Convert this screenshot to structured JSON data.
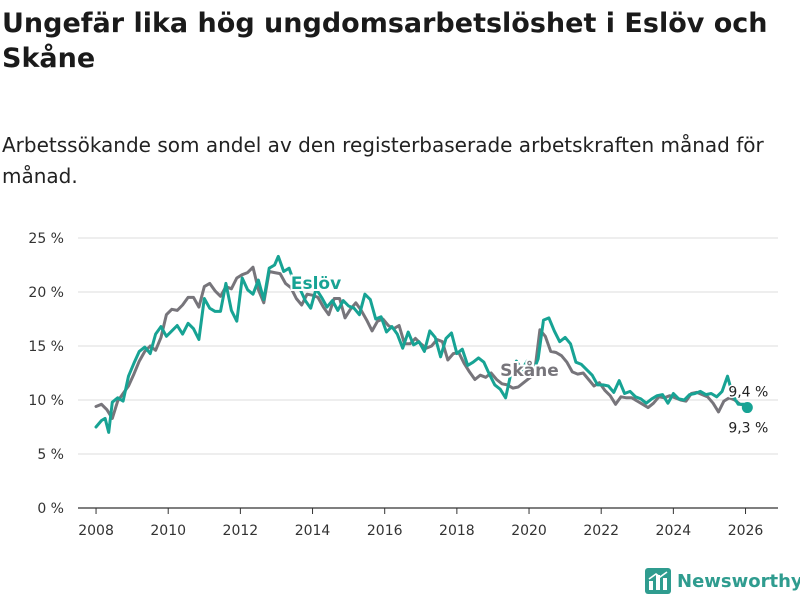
{
  "title": "Ungefär lika hög ungdomsarbetslöshet i Eslöv och Skåne",
  "subtitle": "Arbetssökande som andel av den registerbaserade arbetskraften månad för månad.",
  "brand": {
    "name": "Newsworthy",
    "icon": "bar-chart-logo-icon",
    "color": "#2f9c8f"
  },
  "chart_data": {
    "type": "line",
    "xlim": [
      2007.5,
      2026.9
    ],
    "ylim": [
      0,
      25
    ],
    "x_ticks": [
      {
        "value": 2008,
        "label": "2008"
      },
      {
        "value": 2010,
        "label": "2010"
      },
      {
        "value": 2012,
        "label": "2012"
      },
      {
        "value": 2014,
        "label": "2014"
      },
      {
        "value": 2016,
        "label": "2016"
      },
      {
        "value": 2018,
        "label": "2018"
      },
      {
        "value": 2020,
        "label": "2020"
      },
      {
        "value": 2022,
        "label": "2022"
      },
      {
        "value": 2024,
        "label": "2024"
      },
      {
        "value": 2026,
        "label": "2026"
      }
    ],
    "y_ticks": [
      {
        "value": 0,
        "label": "0 %"
      },
      {
        "value": 5,
        "label": "5 %"
      },
      {
        "value": 10,
        "label": "10 %"
      },
      {
        "value": 15,
        "label": "15 %"
      },
      {
        "value": 20,
        "label": "20 %"
      },
      {
        "value": 25,
        "label": "25 %"
      }
    ],
    "series": [
      {
        "name": "Skåne",
        "label": "Skåne",
        "label_at": [
          2019.2,
          12.2
        ],
        "color": "#77757b",
        "end_label": "9,4 %",
        "points": [
          [
            2008.0,
            9.4
          ],
          [
            2008.15,
            9.6
          ],
          [
            2008.3,
            9.1
          ],
          [
            2008.45,
            8.3
          ],
          [
            2008.6,
            9.9
          ],
          [
            2008.75,
            10.6
          ],
          [
            2008.9,
            11.3
          ],
          [
            2009.05,
            12.4
          ],
          [
            2009.2,
            13.6
          ],
          [
            2009.35,
            14.5
          ],
          [
            2009.5,
            15.0
          ],
          [
            2009.65,
            14.6
          ],
          [
            2009.8,
            15.8
          ],
          [
            2009.95,
            17.9
          ],
          [
            2010.1,
            18.4
          ],
          [
            2010.25,
            18.3
          ],
          [
            2010.4,
            18.8
          ],
          [
            2010.55,
            19.5
          ],
          [
            2010.7,
            19.5
          ],
          [
            2010.85,
            18.6
          ],
          [
            2011.0,
            20.5
          ],
          [
            2011.15,
            20.8
          ],
          [
            2011.3,
            20.1
          ],
          [
            2011.45,
            19.6
          ],
          [
            2011.6,
            20.5
          ],
          [
            2011.75,
            20.3
          ],
          [
            2011.9,
            21.3
          ],
          [
            2012.05,
            21.6
          ],
          [
            2012.2,
            21.8
          ],
          [
            2012.35,
            22.3
          ],
          [
            2012.5,
            20.2
          ],
          [
            2012.65,
            19.0
          ],
          [
            2012.8,
            21.9
          ],
          [
            2012.95,
            21.8
          ],
          [
            2013.1,
            21.7
          ],
          [
            2013.25,
            20.8
          ],
          [
            2013.4,
            20.4
          ],
          [
            2013.55,
            19.4
          ],
          [
            2013.7,
            18.8
          ],
          [
            2013.85,
            19.8
          ],
          [
            2014.0,
            19.7
          ],
          [
            2014.15,
            19.5
          ],
          [
            2014.3,
            18.6
          ],
          [
            2014.45,
            17.9
          ],
          [
            2014.6,
            19.4
          ],
          [
            2014.75,
            19.4
          ],
          [
            2014.9,
            17.6
          ],
          [
            2015.05,
            18.4
          ],
          [
            2015.2,
            19.0
          ],
          [
            2015.35,
            18.3
          ],
          [
            2015.5,
            17.4
          ],
          [
            2015.65,
            16.4
          ],
          [
            2015.8,
            17.3
          ],
          [
            2015.95,
            17.5
          ],
          [
            2016.1,
            16.9
          ],
          [
            2016.25,
            16.6
          ],
          [
            2016.4,
            16.9
          ],
          [
            2016.55,
            15.2
          ],
          [
            2016.7,
            15.2
          ],
          [
            2016.85,
            15.7
          ],
          [
            2017.0,
            15.2
          ],
          [
            2017.15,
            14.8
          ],
          [
            2017.3,
            15.0
          ],
          [
            2017.45,
            15.6
          ],
          [
            2017.6,
            15.4
          ],
          [
            2017.75,
            13.7
          ],
          [
            2017.9,
            14.3
          ],
          [
            2018.05,
            14.4
          ],
          [
            2018.2,
            13.4
          ],
          [
            2018.35,
            12.6
          ],
          [
            2018.5,
            11.9
          ],
          [
            2018.65,
            12.3
          ],
          [
            2018.8,
            12.1
          ],
          [
            2018.95,
            12.5
          ],
          [
            2019.1,
            11.9
          ],
          [
            2019.25,
            11.5
          ],
          [
            2019.4,
            11.4
          ],
          [
            2019.55,
            11.1
          ],
          [
            2019.7,
            11.2
          ],
          [
            2019.85,
            11.6
          ],
          [
            2020.0,
            12.0
          ],
          [
            2020.15,
            12.4
          ],
          [
            2020.3,
            16.5
          ],
          [
            2020.45,
            15.9
          ],
          [
            2020.6,
            14.5
          ],
          [
            2020.75,
            14.4
          ],
          [
            2020.9,
            14.1
          ],
          [
            2021.05,
            13.5
          ],
          [
            2021.2,
            12.6
          ],
          [
            2021.35,
            12.4
          ],
          [
            2021.5,
            12.5
          ],
          [
            2021.65,
            11.9
          ],
          [
            2021.8,
            11.3
          ],
          [
            2021.95,
            11.6
          ],
          [
            2022.1,
            10.9
          ],
          [
            2022.25,
            10.4
          ],
          [
            2022.4,
            9.6
          ],
          [
            2022.55,
            10.3
          ],
          [
            2022.7,
            10.2
          ],
          [
            2022.85,
            10.2
          ],
          [
            2023.0,
            9.9
          ],
          [
            2023.15,
            9.6
          ],
          [
            2023.3,
            9.3
          ],
          [
            2023.45,
            9.7
          ],
          [
            2023.6,
            10.3
          ],
          [
            2023.75,
            10.2
          ],
          [
            2023.9,
            10.4
          ],
          [
            2024.05,
            10.2
          ],
          [
            2024.2,
            10.0
          ],
          [
            2024.35,
            9.9
          ],
          [
            2024.5,
            10.6
          ],
          [
            2024.65,
            10.7
          ],
          [
            2024.8,
            10.5
          ],
          [
            2024.95,
            10.3
          ],
          [
            2025.1,
            9.7
          ],
          [
            2025.25,
            8.9
          ],
          [
            2025.4,
            9.9
          ],
          [
            2025.55,
            10.2
          ],
          [
            2025.7,
            10.0
          ],
          [
            2025.85,
            9.6
          ],
          [
            2026.0,
            9.5
          ],
          [
            2026.05,
            9.4
          ]
        ]
      },
      {
        "name": "Eslöv",
        "label": "Eslöv",
        "label_at": [
          2013.4,
          20.3
        ],
        "color": "#17a394",
        "end_label": "9,3 %",
        "points": [
          [
            2008.0,
            7.5
          ],
          [
            2008.15,
            8.1
          ],
          [
            2008.25,
            8.3
          ],
          [
            2008.35,
            7.0
          ],
          [
            2008.45,
            9.8
          ],
          [
            2008.6,
            10.2
          ],
          [
            2008.75,
            9.9
          ],
          [
            2008.9,
            12.2
          ],
          [
            2009.05,
            13.4
          ],
          [
            2009.2,
            14.5
          ],
          [
            2009.35,
            14.9
          ],
          [
            2009.5,
            14.3
          ],
          [
            2009.65,
            16.1
          ],
          [
            2009.8,
            16.8
          ],
          [
            2009.95,
            15.9
          ],
          [
            2010.1,
            16.4
          ],
          [
            2010.25,
            16.9
          ],
          [
            2010.4,
            16.1
          ],
          [
            2010.55,
            17.1
          ],
          [
            2010.7,
            16.6
          ],
          [
            2010.85,
            15.6
          ],
          [
            2011.0,
            19.4
          ],
          [
            2011.15,
            18.5
          ],
          [
            2011.3,
            18.2
          ],
          [
            2011.45,
            18.2
          ],
          [
            2011.6,
            20.8
          ],
          [
            2011.75,
            18.3
          ],
          [
            2011.9,
            17.3
          ],
          [
            2012.05,
            21.3
          ],
          [
            2012.2,
            20.2
          ],
          [
            2012.35,
            19.8
          ],
          [
            2012.5,
            21.1
          ],
          [
            2012.65,
            19.3
          ],
          [
            2012.8,
            22.2
          ],
          [
            2012.95,
            22.5
          ],
          [
            2013.05,
            23.3
          ],
          [
            2013.2,
            21.9
          ],
          [
            2013.35,
            22.2
          ],
          [
            2013.5,
            20.8
          ],
          [
            2013.65,
            20.3
          ],
          [
            2013.8,
            19.2
          ],
          [
            2013.95,
            18.5
          ],
          [
            2014.1,
            20.3
          ],
          [
            2014.25,
            19.5
          ],
          [
            2014.4,
            18.6
          ],
          [
            2014.55,
            19.2
          ],
          [
            2014.7,
            18.3
          ],
          [
            2014.85,
            19.2
          ],
          [
            2015.0,
            18.7
          ],
          [
            2015.15,
            18.5
          ],
          [
            2015.3,
            17.9
          ],
          [
            2015.45,
            19.8
          ],
          [
            2015.6,
            19.3
          ],
          [
            2015.75,
            17.5
          ],
          [
            2015.9,
            17.7
          ],
          [
            2016.05,
            16.3
          ],
          [
            2016.2,
            16.8
          ],
          [
            2016.35,
            16.1
          ],
          [
            2016.5,
            14.8
          ],
          [
            2016.65,
            16.3
          ],
          [
            2016.8,
            15.1
          ],
          [
            2016.95,
            15.4
          ],
          [
            2017.1,
            14.5
          ],
          [
            2017.25,
            16.4
          ],
          [
            2017.4,
            15.8
          ],
          [
            2017.55,
            14.0
          ],
          [
            2017.7,
            15.7
          ],
          [
            2017.85,
            16.2
          ],
          [
            2018.0,
            14.3
          ],
          [
            2018.15,
            14.7
          ],
          [
            2018.3,
            13.2
          ],
          [
            2018.45,
            13.5
          ],
          [
            2018.6,
            13.9
          ],
          [
            2018.75,
            13.5
          ],
          [
            2018.9,
            12.4
          ],
          [
            2019.05,
            11.4
          ],
          [
            2019.2,
            11.0
          ],
          [
            2019.35,
            10.2
          ],
          [
            2019.5,
            12.5
          ],
          [
            2019.65,
            13.6
          ],
          [
            2019.8,
            12.8
          ],
          [
            2019.95,
            13.6
          ],
          [
            2020.1,
            12.5
          ],
          [
            2020.25,
            13.8
          ],
          [
            2020.4,
            17.4
          ],
          [
            2020.55,
            17.6
          ],
          [
            2020.7,
            16.4
          ],
          [
            2020.85,
            15.4
          ],
          [
            2021.0,
            15.8
          ],
          [
            2021.15,
            15.2
          ],
          [
            2021.3,
            13.5
          ],
          [
            2021.45,
            13.3
          ],
          [
            2021.6,
            12.8
          ],
          [
            2021.75,
            12.3
          ],
          [
            2021.9,
            11.4
          ],
          [
            2022.05,
            11.4
          ],
          [
            2022.2,
            11.3
          ],
          [
            2022.35,
            10.7
          ],
          [
            2022.5,
            11.8
          ],
          [
            2022.65,
            10.6
          ],
          [
            2022.8,
            10.8
          ],
          [
            2022.95,
            10.3
          ],
          [
            2023.1,
            10.1
          ],
          [
            2023.25,
            9.7
          ],
          [
            2023.4,
            10.1
          ],
          [
            2023.55,
            10.4
          ],
          [
            2023.7,
            10.5
          ],
          [
            2023.85,
            9.7
          ],
          [
            2024.0,
            10.6
          ],
          [
            2024.15,
            10.1
          ],
          [
            2024.3,
            10.0
          ],
          [
            2024.45,
            10.5
          ],
          [
            2024.6,
            10.6
          ],
          [
            2024.75,
            10.8
          ],
          [
            2024.9,
            10.5
          ],
          [
            2025.05,
            10.6
          ],
          [
            2025.2,
            10.3
          ],
          [
            2025.35,
            10.8
          ],
          [
            2025.5,
            12.2
          ],
          [
            2025.65,
            10.4
          ],
          [
            2025.8,
            9.6
          ],
          [
            2025.95,
            9.6
          ],
          [
            2026.05,
            9.3
          ]
        ]
      }
    ]
  }
}
